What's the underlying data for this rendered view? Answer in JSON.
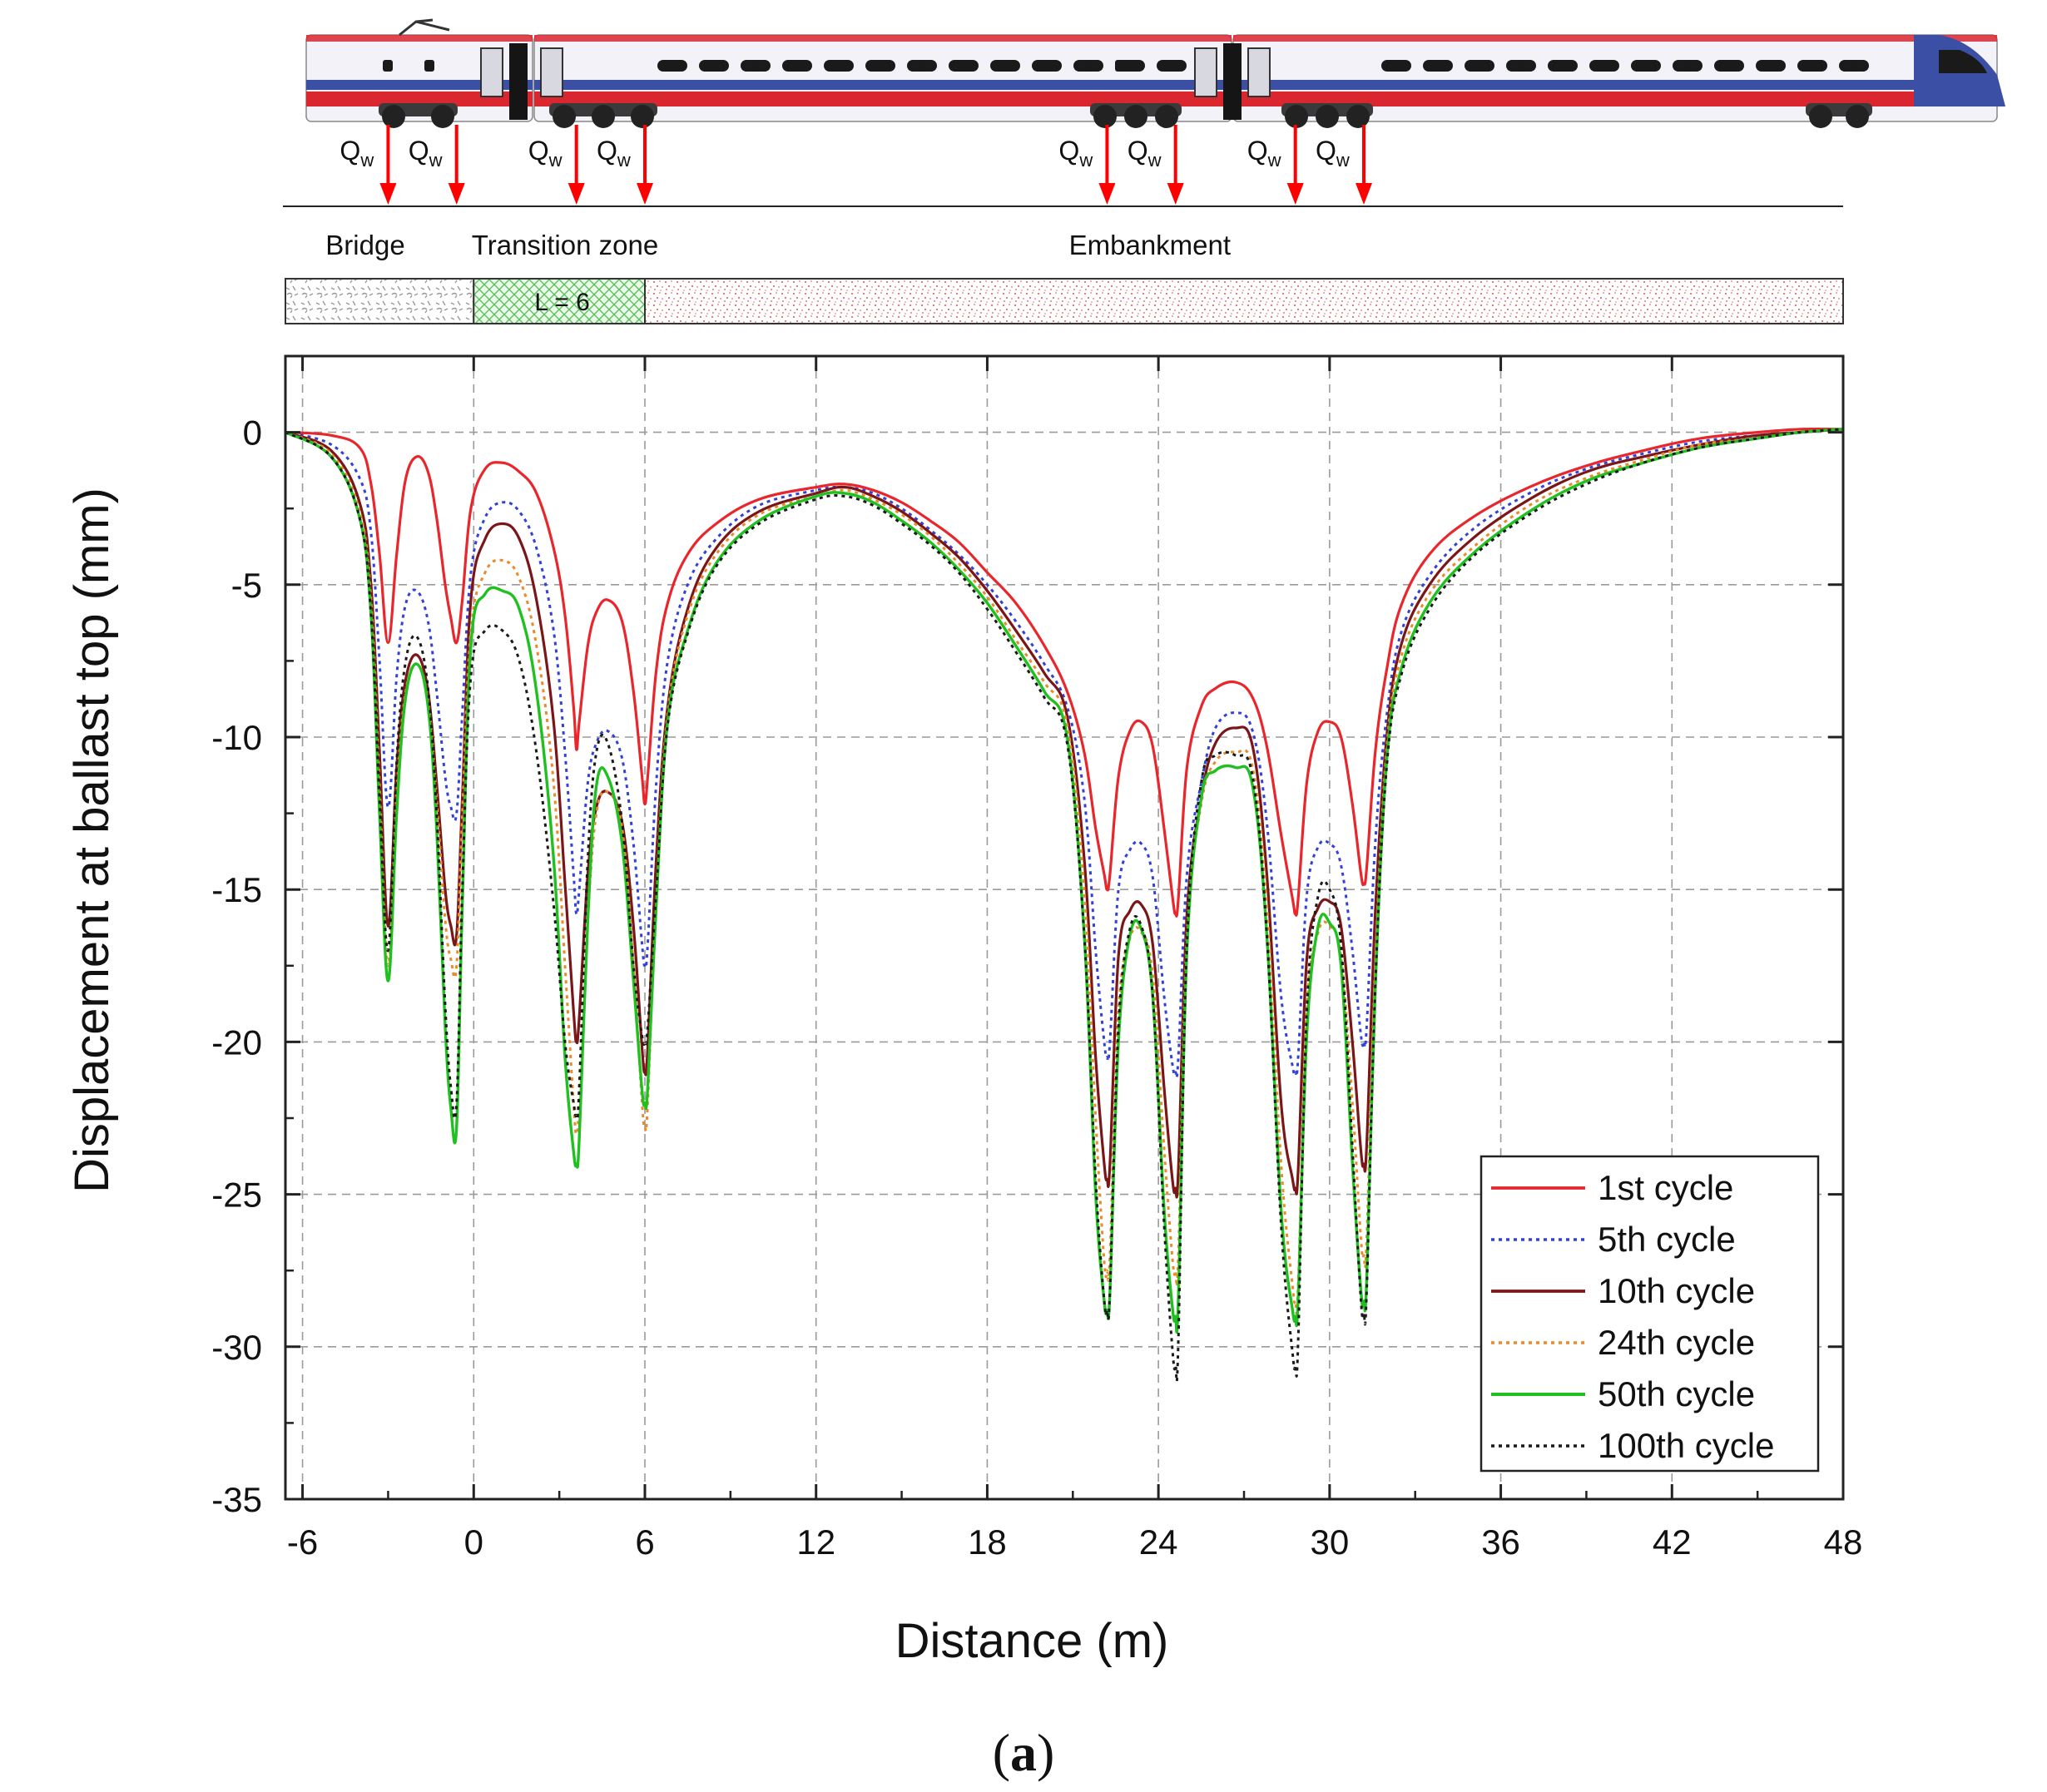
{
  "figure": {
    "caption_letter": "a",
    "caption_open": "(",
    "caption_close": ")"
  },
  "schematic": {
    "load_label": "Q",
    "load_subscript": "w",
    "load_positions_m": [
      -3,
      -0.6,
      3.6,
      6,
      22.2,
      24.6,
      28.8,
      31.2
    ],
    "zones": [
      {
        "name": "Bridge",
        "from": -6.6,
        "to": 0,
        "color": "#bbbbbb"
      },
      {
        "name": "Transition zone",
        "from": 0,
        "to": 6,
        "color": "#5fbf5f"
      },
      {
        "name": "Embankment",
        "from": 6,
        "to": 48,
        "color": "#e05050"
      }
    ],
    "transition_length_label": "L = 6",
    "train_colors": {
      "body": "#f2f2f8",
      "stripe_red": "#d9262f",
      "stripe_blue": "#3b4fa5",
      "window": "#1a1a1a"
    }
  },
  "chart_data": {
    "type": "line",
    "xlabel": "Distance (m)",
    "ylabel": "Displacement at ballast top (mm)",
    "xlim": [
      -6.6,
      48
    ],
    "ylim": [
      -35,
      2.5
    ],
    "xticks": [
      -6,
      0,
      6,
      12,
      18,
      24,
      30,
      36,
      42,
      48
    ],
    "yticks": [
      0,
      -5,
      -10,
      -15,
      -20,
      -25,
      -30,
      -35
    ],
    "grid": true,
    "legend_position": "bottom-right",
    "series": [
      {
        "name": "1st cycle",
        "color": "#e8262b",
        "style": "solid",
        "width": 3.2,
        "x": [
          -6.6,
          -5,
          -4,
          -3.6,
          -3.3,
          -3,
          -2.7,
          -2.4,
          -2,
          -1.6,
          -1.3,
          -1,
          -0.8,
          -0.6,
          -0.4,
          -0.1,
          0.4,
          1,
          1.6,
          2.2,
          2.8,
          3.2,
          3.5,
          3.6,
          3.7,
          4,
          4.3,
          4.7,
          5.2,
          5.6,
          5.9,
          6,
          6.1,
          6.4,
          6.8,
          7.5,
          8.5,
          10,
          12,
          13,
          14,
          15,
          16,
          17,
          18,
          19,
          20,
          20.8,
          21.4,
          21.8,
          22.1,
          22.2,
          22.3,
          22.6,
          23,
          23.4,
          23.8,
          24.2,
          24.5,
          24.6,
          24.7,
          25,
          25.5,
          26,
          26.7,
          27.3,
          27.8,
          28.3,
          28.7,
          28.8,
          28.9,
          29.2,
          29.6,
          30,
          30.4,
          30.8,
          31.1,
          31.2,
          31.3,
          31.6,
          32,
          32.5,
          33.5,
          35,
          37,
          39,
          41,
          43,
          45,
          46.5,
          48
        ],
        "y": [
          0,
          -0.1,
          -0.5,
          -1.7,
          -4,
          -6.9,
          -4,
          -1.6,
          -0.8,
          -1.3,
          -2.8,
          -5,
          -6.1,
          -6.9,
          -5.5,
          -2.5,
          -1.2,
          -1,
          -1.3,
          -2,
          -3.8,
          -6,
          -9,
          -10.4,
          -9.5,
          -7,
          -5.9,
          -5.5,
          -6.2,
          -8.5,
          -11.3,
          -12.2,
          -11.3,
          -7.8,
          -5.6,
          -4,
          -3,
          -2.2,
          -1.8,
          -1.7,
          -1.9,
          -2.3,
          -2.9,
          -3.6,
          -4.6,
          -5.6,
          -7,
          -8.5,
          -10.5,
          -13,
          -14.5,
          -15,
          -14.5,
          -11.3,
          -9.8,
          -9.5,
          -10.3,
          -13,
          -15.3,
          -15.8,
          -15.3,
          -11,
          -9,
          -8.4,
          -8.2,
          -8.7,
          -10.3,
          -13.2,
          -15.3,
          -15.8,
          -15.3,
          -11.5,
          -9.8,
          -9.5,
          -10,
          -12.2,
          -14.5,
          -14.8,
          -14.3,
          -10.5,
          -7.8,
          -5.7,
          -4,
          -2.8,
          -1.8,
          -1.1,
          -0.6,
          -0.2,
          0,
          0.1,
          0.1
        ]
      },
      {
        "name": "5th cycle",
        "color": "#3341d6",
        "style": "dotted",
        "width": 3,
        "x": [
          -6.6,
          -5,
          -4,
          -3.6,
          -3.3,
          -3,
          -2.7,
          -2.4,
          -2,
          -1.6,
          -1.3,
          -1,
          -0.8,
          -0.6,
          -0.4,
          -0.1,
          0.4,
          1,
          1.6,
          2.2,
          2.8,
          3.2,
          3.5,
          3.6,
          3.7,
          4,
          4.3,
          4.7,
          5.2,
          5.6,
          5.9,
          6,
          6.1,
          6.4,
          6.8,
          7.5,
          8.5,
          10,
          12,
          13,
          14,
          15,
          16,
          17,
          18,
          19,
          20,
          20.8,
          21.4,
          21.8,
          22.1,
          22.2,
          22.3,
          22.6,
          23,
          23.4,
          23.8,
          24.2,
          24.5,
          24.6,
          24.7,
          25,
          25.5,
          26,
          26.7,
          27.3,
          27.8,
          28.3,
          28.7,
          28.8,
          28.9,
          29.2,
          29.6,
          30,
          30.4,
          30.8,
          31.1,
          31.2,
          31.3,
          31.6,
          32,
          32.5,
          33.5,
          35,
          37,
          39,
          41,
          43,
          45,
          46.5,
          48
        ],
        "y": [
          0,
          -0.4,
          -1.5,
          -3.3,
          -7.5,
          -12.3,
          -8,
          -5.7,
          -5.2,
          -6.2,
          -8.5,
          -11.3,
          -12.3,
          -12.5,
          -9.2,
          -4.6,
          -2.8,
          -2.3,
          -2.6,
          -3.8,
          -6.5,
          -10.5,
          -14.5,
          -15.8,
          -15,
          -11.5,
          -10.2,
          -9.8,
          -10.7,
          -13.5,
          -16.8,
          -17.5,
          -16.8,
          -11.5,
          -7.5,
          -5,
          -3.5,
          -2.4,
          -1.9,
          -1.8,
          -2,
          -2.5,
          -3.2,
          -4,
          -5,
          -6.2,
          -7.6,
          -9,
          -12,
          -17,
          -20,
          -20.5,
          -20,
          -15,
          -13.7,
          -13.5,
          -14.6,
          -18.5,
          -20.8,
          -21,
          -20.5,
          -14.5,
          -11.5,
          -9.7,
          -9.2,
          -9.8,
          -12.8,
          -18.5,
          -20.8,
          -21,
          -20.5,
          -15.2,
          -13.6,
          -13.5,
          -14.2,
          -17,
          -19.8,
          -20,
          -19.5,
          -13.5,
          -9.3,
          -6.6,
          -4.7,
          -3.2,
          -2,
          -1.2,
          -0.7,
          -0.3,
          -0.1,
          0,
          0.1
        ]
      },
      {
        "name": "10th cycle",
        "color": "#7a1518",
        "style": "solid",
        "width": 3.2,
        "x": [
          -6.6,
          -5,
          -4,
          -3.6,
          -3.3,
          -3,
          -2.7,
          -2.4,
          -2,
          -1.6,
          -1.3,
          -1,
          -0.8,
          -0.6,
          -0.4,
          -0.1,
          0.4,
          1,
          1.6,
          2.2,
          2.8,
          3.2,
          3.5,
          3.6,
          3.7,
          4,
          4.3,
          4.7,
          5.2,
          5.6,
          5.9,
          6,
          6.1,
          6.4,
          6.8,
          7.5,
          8.5,
          10,
          12,
          13,
          14,
          15,
          16,
          17,
          18,
          19,
          20,
          20.8,
          21.4,
          21.8,
          22.1,
          22.2,
          22.3,
          22.6,
          23,
          23.4,
          23.8,
          24.2,
          24.5,
          24.6,
          24.7,
          25,
          25.5,
          26,
          26.7,
          27.3,
          27.8,
          28.3,
          28.7,
          28.8,
          28.9,
          29.2,
          29.6,
          30,
          30.4,
          30.8,
          31.1,
          31.2,
          31.3,
          31.6,
          32,
          32.5,
          33.5,
          35,
          37,
          39,
          41,
          43,
          45,
          46.5,
          48
        ],
        "y": [
          0,
          -0.6,
          -2.3,
          -5,
          -10.5,
          -16.2,
          -11,
          -8.2,
          -7.3,
          -8.5,
          -11.5,
          -15,
          -16.2,
          -16.5,
          -12,
          -5.5,
          -3.5,
          -3,
          -3.5,
          -5.5,
          -9.5,
          -14.8,
          -19,
          -20,
          -19.2,
          -14.5,
          -12.3,
          -11.8,
          -12.8,
          -16.2,
          -20.2,
          -21,
          -20.2,
          -14,
          -9,
          -5.8,
          -3.8,
          -2.6,
          -2,
          -1.8,
          -2.1,
          -2.6,
          -3.3,
          -4.1,
          -5.2,
          -6.5,
          -7.9,
          -9.3,
          -14,
          -20.5,
          -24,
          -24.5,
          -24,
          -17.2,
          -15.7,
          -15.5,
          -16.8,
          -21.5,
          -24.6,
          -24.8,
          -24.2,
          -15.8,
          -12,
          -10.2,
          -9.7,
          -10.3,
          -14.5,
          -22,
          -24.5,
          -24.8,
          -24.2,
          -17.3,
          -15.6,
          -15.4,
          -16.2,
          -20,
          -23.6,
          -24,
          -23.4,
          -15.8,
          -10,
          -7,
          -5,
          -3.5,
          -2.2,
          -1.3,
          -0.8,
          -0.4,
          -0.1,
          0,
          0.1
        ]
      },
      {
        "name": "24th cycle",
        "color": "#e98a2b",
        "style": "dotted",
        "width": 3,
        "x": [
          -6.6,
          -5,
          -4,
          -3.6,
          -3.3,
          -3,
          -2.7,
          -2.4,
          -2,
          -1.6,
          -1.3,
          -1,
          -0.8,
          -0.6,
          -0.4,
          -0.1,
          0.4,
          1,
          1.6,
          2.2,
          2.8,
          3.2,
          3.5,
          3.6,
          3.7,
          4,
          4.3,
          4.7,
          5.2,
          5.6,
          5.9,
          6,
          6.1,
          6.4,
          6.8,
          7.5,
          8.5,
          10,
          12,
          13,
          14,
          15,
          16,
          17,
          18,
          19,
          20,
          20.8,
          21.4,
          21.8,
          22.1,
          22.2,
          22.3,
          22.6,
          23,
          23.4,
          23.8,
          24.2,
          24.5,
          24.6,
          24.7,
          25,
          25.5,
          26,
          26.7,
          27.3,
          27.8,
          28.3,
          28.7,
          28.8,
          28.9,
          29.2,
          29.6,
          30,
          30.4,
          30.8,
          31.1,
          31.2,
          31.3,
          31.6,
          32,
          32.5,
          33.5,
          35,
          37,
          39,
          41,
          43,
          45,
          46.5,
          48
        ],
        "y": [
          0,
          -0.7,
          -2.6,
          -5.5,
          -11.5,
          -17.5,
          -11.8,
          -8.6,
          -7.6,
          -8.8,
          -12,
          -16,
          -17.3,
          -17.5,
          -12.5,
          -6.5,
          -4.6,
          -4.2,
          -4.8,
          -7,
          -11.5,
          -17.5,
          -22,
          -23,
          -22,
          -16,
          -12.5,
          -11.8,
          -13,
          -17.5,
          -22,
          -22.8,
          -22,
          -15,
          -9.2,
          -6,
          -4,
          -2.7,
          -2.1,
          -1.9,
          -2.2,
          -2.7,
          -3.4,
          -4.3,
          -5.4,
          -6.8,
          -8.2,
          -9.6,
          -15,
          -22.5,
          -27.2,
          -27.5,
          -27,
          -19,
          -16.6,
          -16.4,
          -17.8,
          -23.5,
          -27.2,
          -27.5,
          -27,
          -16.5,
          -12.2,
          -10.8,
          -10.5,
          -11,
          -15.5,
          -24,
          -28,
          -28.5,
          -28,
          -19,
          -16.4,
          -16.2,
          -17.2,
          -22,
          -26.5,
          -27,
          -26.5,
          -17.5,
          -10.4,
          -7.4,
          -5.3,
          -3.8,
          -2.4,
          -1.5,
          -0.9,
          -0.4,
          -0.2,
          0,
          0.1
        ]
      },
      {
        "name": "50th cycle",
        "color": "#20c020",
        "style": "solid",
        "width": 3.4,
        "x": [
          -6.6,
          -5,
          -4,
          -3.6,
          -3.3,
          -3,
          -2.7,
          -2.4,
          -2,
          -1.6,
          -1.3,
          -1,
          -0.8,
          -0.6,
          -0.4,
          -0.1,
          0.4,
          1,
          1.6,
          2.2,
          2.8,
          3.2,
          3.5,
          3.6,
          3.7,
          4,
          4.3,
          4.7,
          5.2,
          5.6,
          5.9,
          6,
          6.1,
          6.4,
          6.8,
          7.5,
          8.5,
          10,
          12,
          13,
          14,
          15,
          16,
          17,
          18,
          19,
          20,
          20.8,
          21.4,
          21.8,
          22.1,
          22.2,
          22.3,
          22.6,
          23,
          23.4,
          23.8,
          24.2,
          24.5,
          24.6,
          24.7,
          25,
          25.5,
          26,
          26.7,
          27.3,
          27.8,
          28.3,
          28.7,
          28.8,
          28.9,
          29.2,
          29.6,
          30,
          30.4,
          30.8,
          31.1,
          31.2,
          31.3,
          31.6,
          32,
          32.5,
          33.5,
          35,
          37,
          39,
          41,
          43,
          45,
          46.5,
          48
        ],
        "y": [
          0,
          -0.8,
          -2.8,
          -6,
          -12.5,
          -18,
          -12.5,
          -8.8,
          -7.6,
          -9,
          -13,
          -19.5,
          -22.2,
          -22.8,
          -15.5,
          -7,
          -5.3,
          -5.2,
          -5.8,
          -8.5,
          -14,
          -20.5,
          -23.6,
          -24,
          -23.2,
          -16,
          -11.6,
          -11.3,
          -13.5,
          -18,
          -21.6,
          -22,
          -21.5,
          -15.5,
          -9.5,
          -6.5,
          -4.3,
          -2.9,
          -2.1,
          -2,
          -2.3,
          -2.9,
          -3.6,
          -4.5,
          -5.6,
          -7,
          -8.5,
          -10,
          -16.5,
          -25,
          -28.5,
          -28.8,
          -28.2,
          -20,
          -16.5,
          -16.3,
          -18.5,
          -25.5,
          -28.8,
          -29,
          -28.4,
          -17,
          -12,
          -11.1,
          -11,
          -11.6,
          -16.5,
          -25.5,
          -28.8,
          -29,
          -28.4,
          -19.8,
          -16.2,
          -16.1,
          -17.5,
          -24,
          -28.2,
          -28.5,
          -27.8,
          -18.3,
          -10.8,
          -7.8,
          -5.6,
          -4,
          -2.6,
          -1.6,
          -1,
          -0.5,
          -0.2,
          0,
          0.1
        ]
      },
      {
        "name": "100th cycle",
        "color": "#1a1a1a",
        "style": "dotted",
        "width": 3,
        "x": [
          -6.6,
          -5,
          -4,
          -3.6,
          -3.3,
          -3,
          -2.7,
          -2.4,
          -2,
          -1.6,
          -1.3,
          -1,
          -0.8,
          -0.6,
          -0.4,
          -0.1,
          0.4,
          1,
          1.6,
          2.2,
          2.8,
          3.2,
          3.5,
          3.6,
          3.7,
          4,
          4.3,
          4.7,
          5.2,
          5.6,
          5.9,
          6,
          6.1,
          6.4,
          6.8,
          7.5,
          8.5,
          10,
          12,
          13,
          14,
          15,
          16,
          17,
          18,
          19,
          20,
          20.8,
          21.4,
          21.8,
          22.1,
          22.2,
          22.3,
          22.6,
          23,
          23.4,
          23.8,
          24.2,
          24.5,
          24.6,
          24.7,
          25,
          25.5,
          26,
          26.7,
          27.3,
          27.8,
          28.3,
          28.7,
          28.8,
          28.9,
          29.2,
          29.6,
          30,
          30.4,
          30.8,
          31.1,
          31.2,
          31.3,
          31.6,
          32,
          32.5,
          33.5,
          35,
          37,
          39,
          41,
          43,
          45,
          46.5,
          48
        ],
        "y": [
          0,
          -0.8,
          -2.8,
          -6,
          -12,
          -17,
          -10.8,
          -7.6,
          -6.7,
          -8.4,
          -12.5,
          -18.8,
          -21.5,
          -22,
          -15,
          -8,
          -6.5,
          -6.5,
          -7.5,
          -10.5,
          -15.5,
          -20,
          -22,
          -22.4,
          -21.5,
          -14,
          -10.5,
          -10.2,
          -12.8,
          -17.5,
          -19.8,
          -20,
          -19.5,
          -15,
          -9.6,
          -6.6,
          -4.4,
          -3,
          -2.2,
          -2.1,
          -2.4,
          -3,
          -3.7,
          -4.6,
          -5.8,
          -7.2,
          -8.7,
          -10.2,
          -16.5,
          -24.5,
          -28.5,
          -28.8,
          -28.2,
          -19.5,
          -16.3,
          -16.2,
          -18.5,
          -26,
          -30.2,
          -30.6,
          -29.8,
          -16.8,
          -11.5,
          -10.6,
          -10.6,
          -11.3,
          -16.5,
          -26,
          -30.2,
          -30.6,
          -29.8,
          -19,
          -15.2,
          -15,
          -16.8,
          -23.5,
          -28.5,
          -28.9,
          -28.2,
          -18.2,
          -11,
          -8,
          -5.8,
          -4.1,
          -2.7,
          -1.7,
          -1,
          -0.5,
          -0.2,
          0,
          0.1
        ]
      }
    ]
  }
}
